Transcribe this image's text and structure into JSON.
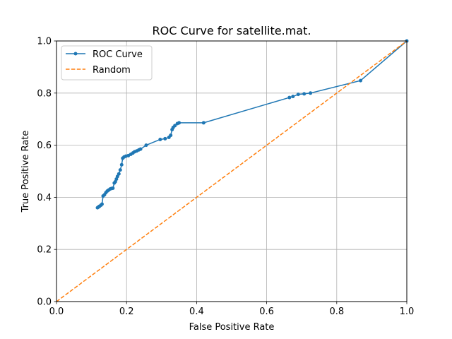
{
  "chart_data": {
    "type": "line",
    "title": "ROC Curve for satellite.mat.",
    "xlabel": "False Positive Rate",
    "ylabel": "True Positive Rate",
    "xlim": [
      0,
      1
    ],
    "ylim": [
      0,
      1
    ],
    "xticks": [
      "0.0",
      "0.2",
      "0.4",
      "0.6",
      "0.8",
      "1.0"
    ],
    "yticks": [
      "0.0",
      "0.2",
      "0.4",
      "0.6",
      "0.8",
      "1.0"
    ],
    "grid": true,
    "legend": "top-left",
    "series": [
      {
        "name": "ROC Curve",
        "color": "#1f77b4",
        "style": "solid",
        "marker": "dot",
        "x": [
          0.117,
          0.12,
          0.123,
          0.127,
          0.13,
          0.133,
          0.137,
          0.141,
          0.145,
          0.149,
          0.153,
          0.157,
          0.161,
          0.165,
          0.168,
          0.171,
          0.174,
          0.178,
          0.182,
          0.186,
          0.189,
          0.193,
          0.198,
          0.205,
          0.212,
          0.218,
          0.223,
          0.229,
          0.235,
          0.24,
          0.256,
          0.296,
          0.31,
          0.321,
          0.326,
          0.33,
          0.333,
          0.338,
          0.345,
          0.35,
          0.42,
          0.665,
          0.675,
          0.69,
          0.707,
          0.725,
          0.868,
          1.0
        ],
        "y": [
          0.36,
          0.363,
          0.366,
          0.37,
          0.374,
          0.405,
          0.41,
          0.418,
          0.424,
          0.428,
          0.432,
          0.434,
          0.435,
          0.455,
          0.46,
          0.47,
          0.48,
          0.49,
          0.505,
          0.525,
          0.55,
          0.555,
          0.558,
          0.56,
          0.565,
          0.57,
          0.575,
          0.578,
          0.582,
          0.585,
          0.6,
          0.622,
          0.625,
          0.63,
          0.638,
          0.66,
          0.668,
          0.675,
          0.683,
          0.686,
          0.686,
          0.783,
          0.787,
          0.795,
          0.797,
          0.8,
          0.848,
          1.0
        ]
      },
      {
        "name": "Random",
        "color": "#ff7f0e",
        "style": "dashed",
        "x": [
          0,
          1
        ],
        "y": [
          0,
          1
        ]
      }
    ]
  }
}
